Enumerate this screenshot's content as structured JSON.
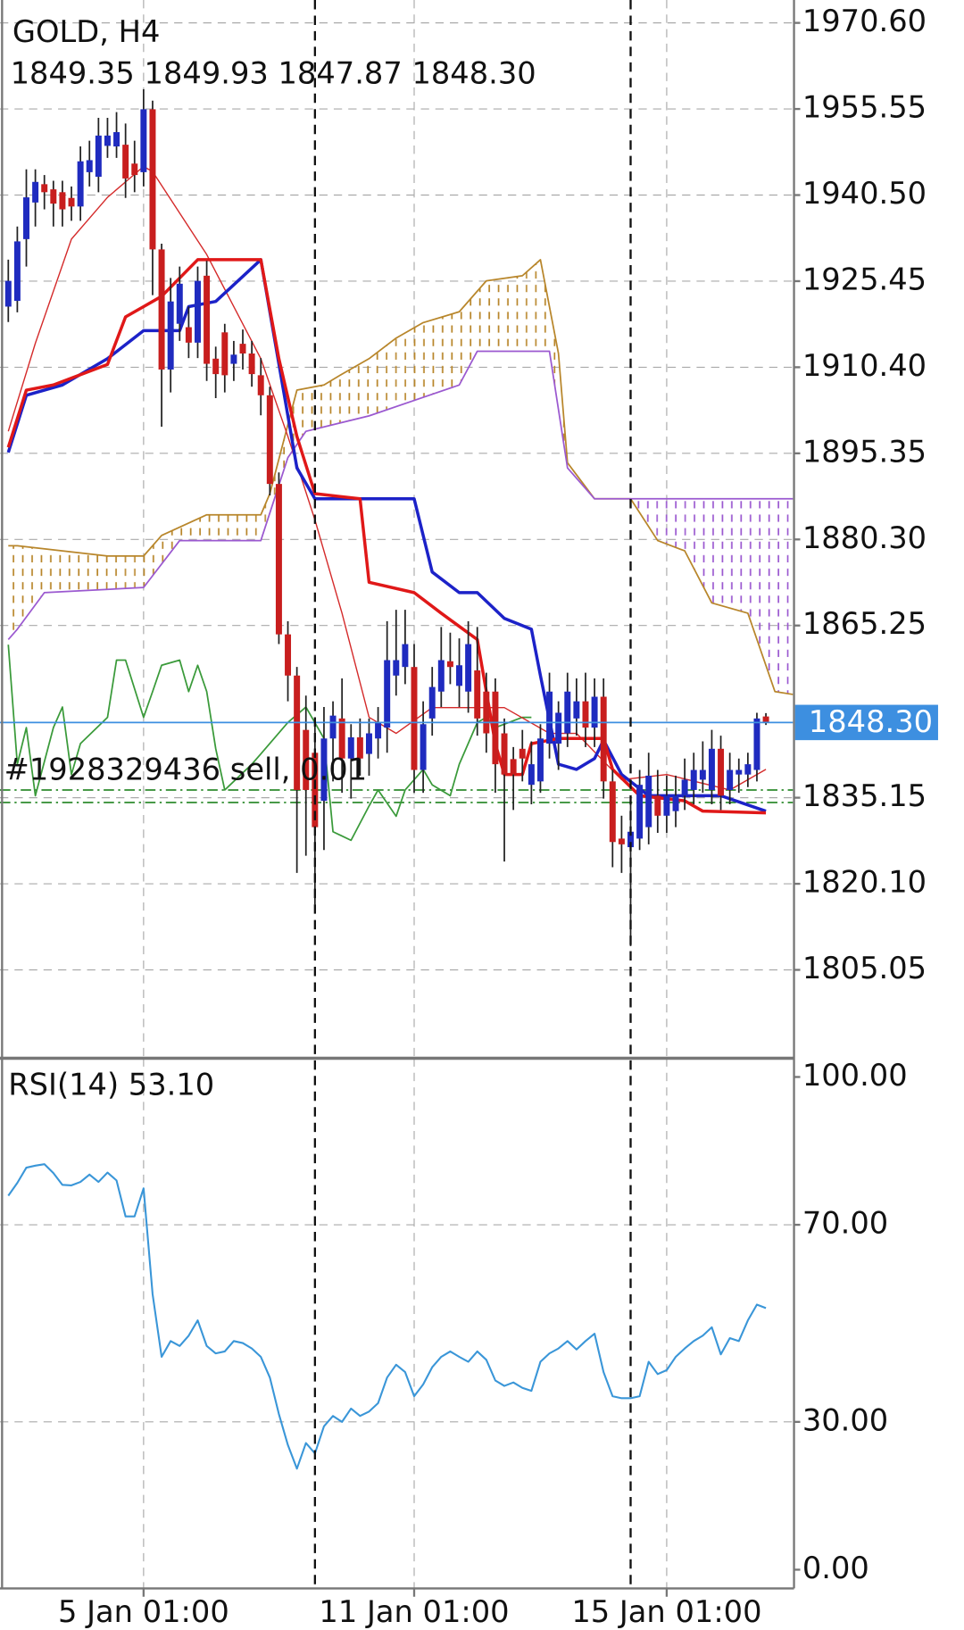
{
  "chart_data": [
    {
      "type": "candlestick",
      "title": "GOLD, H4",
      "subtitle": "1849.35 1849.93 1847.87 1848.30",
      "up_color": "#1f2bbf",
      "down_color": "#c81e1e",
      "wick_color": "#222222",
      "open": [
        1921.0,
        1922.0,
        1932.8,
        1939.2,
        1942.4,
        1941.5,
        1941.0,
        1940.0,
        1938.5,
        1944.5,
        1943.7,
        1949.1,
        1949.0,
        1949.3,
        1946.0,
        1944.5,
        1955.5,
        1931.0,
        1910.0,
        1918.0,
        1917.4,
        1914.7,
        1926.4,
        1911.9,
        1916.5,
        1911.0,
        1914.5,
        1912.8,
        1909.0,
        1905.5,
        1890.0,
        1863.7,
        1856.5,
        1847.0,
        1843.0,
        1834.6,
        1845.5,
        1849.0,
        1842.0,
        1845.7,
        1842.8,
        1845.5,
        1847.4,
        1856.5,
        1858.0,
        1858.0,
        1840.0,
        1849.0,
        1853.7,
        1859.0,
        1854.7,
        1853.7,
        1857.4,
        1853.7,
        1853.7,
        1846.4,
        1841.9,
        1843.7,
        1837.4,
        1838.0,
        1844.6,
        1844.6,
        1846.4,
        1849.0,
        1852.0,
        1847.4,
        1852.8,
        1838.0,
        1828.0,
        1826.5,
        1828.0,
        1830.0,
        1835.5,
        1832.0,
        1832.8,
        1835.5,
        1836.5,
        1838.3,
        1836.5,
        1843.7,
        1836.5,
        1839.2,
        1839.2,
        1840.0,
        1849.35
      ],
      "high": [
        1929.2,
        1935,
        1945,
        1945,
        1944,
        1943,
        1943,
        1942,
        1949,
        1950,
        1954,
        1954,
        1955,
        1953,
        1950,
        1959,
        1957,
        1932,
        1926,
        1928,
        1921,
        1928,
        1929,
        1914,
        1918,
        1915,
        1917,
        1915,
        1912,
        1907,
        1892,
        1866,
        1858,
        1853,
        1849,
        1851,
        1852,
        1856,
        1848,
        1849,
        1849,
        1851,
        1866,
        1868,
        1868,
        1862,
        1852,
        1858,
        1865,
        1864,
        1863,
        1866,
        1865,
        1857,
        1856,
        1849,
        1844,
        1847,
        1845,
        1848,
        1857,
        1852,
        1857,
        1856,
        1857,
        1856,
        1856,
        1840,
        1832,
        1834,
        1840,
        1843,
        1840,
        1839,
        1839,
        1842,
        1843,
        1845,
        1847,
        1846,
        1843,
        1842,
        1843,
        1850,
        1849.93
      ],
      "low": [
        1918.3,
        1920,
        1928,
        1935,
        1938,
        1935,
        1935,
        1936,
        1936,
        1942,
        1941,
        1947,
        1947,
        1940,
        1941,
        1942,
        1923,
        1900,
        1906,
        1915,
        1912,
        1912,
        1908,
        1905,
        1906,
        1908,
        1910,
        1907,
        1902,
        1888,
        1862,
        1852,
        1822,
        1825,
        1816.5,
        1826,
        1838,
        1836,
        1835,
        1839,
        1839,
        1842,
        1843,
        1853,
        1855,
        1836,
        1836,
        1846,
        1851,
        1855,
        1851,
        1850,
        1846,
        1843,
        1836,
        1824,
        1833,
        1838,
        1834,
        1836,
        1842,
        1840,
        1844,
        1846,
        1844,
        1844,
        1835,
        1823,
        1822,
        1809.2,
        1826,
        1827,
        1829,
        1829,
        1830,
        1833,
        1834,
        1836,
        1834,
        1833,
        1834,
        1836,
        1837,
        1838,
        1847.87
      ],
      "close": [
        1925.5,
        1932.4,
        1940.1,
        1942.8,
        1941.0,
        1939.0,
        1938.0,
        1938.5,
        1946.4,
        1946.6,
        1950.9,
        1950.9,
        1951.5,
        1943.4,
        1944.0,
        1955.5,
        1931.0,
        1910.0,
        1921.9,
        1925.0,
        1914.7,
        1925.5,
        1911.0,
        1909.2,
        1909.0,
        1912.6,
        1912.8,
        1909.2,
        1905.5,
        1890.0,
        1863.7,
        1856.5,
        1836.5,
        1836.5,
        1830.0,
        1845.5,
        1849.5,
        1842.0,
        1845.7,
        1842.0,
        1846.4,
        1848.3,
        1859.2,
        1859.2,
        1862.0,
        1840.0,
        1848.0,
        1854.5,
        1859.2,
        1858.0,
        1858.3,
        1862.0,
        1849.0,
        1846.4,
        1841.0,
        1839.2,
        1839.2,
        1842.0,
        1841.0,
        1845.5,
        1853.7,
        1850.0,
        1853.7,
        1852.0,
        1847.4,
        1852.8,
        1838.0,
        1827.4,
        1827.0,
        1829.2,
        1837.4,
        1839.0,
        1832.0,
        1835.5,
        1835.5,
        1838.3,
        1840.0,
        1840.0,
        1843.7,
        1835.5,
        1840.0,
        1840.0,
        1841.0,
        1849.0,
        1848.3
      ],
      "lines": [
        {
          "color": "#b8862b",
          "width": 1.5,
          "x": [
            0,
            1,
            11,
            15,
            17,
            22,
            28,
            29,
            32,
            35,
            37,
            40,
            43,
            46,
            50,
            53,
            57,
            59,
            61,
            62,
            65,
            69,
            72,
            75,
            78,
            82,
            85,
            87
          ],
          "values": [
            1879.2,
            1879.2,
            1877.4,
            1877.4,
            1881.0,
            1884.6,
            1884.6,
            1888.3,
            1906.4,
            1907.3,
            1909.2,
            1911.9,
            1915.5,
            1918.2,
            1920.1,
            1925.5,
            1926.4,
            1929.2,
            1912.8,
            1893.7,
            1887.4,
            1887.4,
            1880.1,
            1878.3,
            1869.2,
            1867.4,
            1853.7,
            1853.2
          ]
        },
        {
          "color": "#9b59d0",
          "width": 1.5,
          "x": [
            0,
            1,
            4,
            15,
            19,
            28,
            31,
            33,
            40,
            45,
            50,
            52,
            60,
            62,
            65,
            87
          ],
          "values": [
            1862.8,
            1864.6,
            1871.0,
            1871.9,
            1880.1,
            1880.1,
            1894.6,
            1899.2,
            1901.9,
            1904.6,
            1907.3,
            1913.2,
            1913.2,
            1892.8,
            1887.4,
            1887.4
          ]
        },
        {
          "color": "#3a9a3a",
          "width": 1.5,
          "x": [
            0,
            1,
            2,
            3,
            5,
            6,
            7,
            8,
            11,
            12,
            13,
            15,
            16,
            17,
            19,
            20,
            21,
            22,
            23,
            24,
            27,
            28,
            31,
            33,
            35,
            36,
            38,
            40,
            41,
            43,
            44,
            46,
            47,
            49,
            50,
            52,
            53,
            54,
            57,
            58
          ],
          "values": [
            1861.9,
            1841.0,
            1847.4,
            1835.5,
            1847.4,
            1851.0,
            1839.2,
            1844.6,
            1849.2,
            1859.2,
            1859.2,
            1849.2,
            1853.7,
            1858.3,
            1859.2,
            1853.7,
            1858.3,
            1853.7,
            1843.7,
            1836.5,
            1841.0,
            1842.8,
            1848.3,
            1851.0,
            1845.5,
            1829.2,
            1827.7,
            1833.7,
            1836.5,
            1831.9,
            1836.5,
            1840.1,
            1837.4,
            1835.5,
            1841.0,
            1848.3,
            1849.2,
            1847.4,
            1849.2,
            1849.2
          ]
        },
        {
          "color": "#d42a2a",
          "width": 1.2,
          "x": [
            0,
            3,
            7,
            11,
            15,
            16,
            22,
            28,
            31,
            34,
            37,
            40,
            43,
            47,
            52,
            55,
            60,
            63,
            68,
            73,
            80,
            84
          ],
          "values": [
            1899.2,
            1914.6,
            1932.8,
            1940.1,
            1945.5,
            1944.6,
            1930.1,
            1911.9,
            1898.3,
            1883.7,
            1867.4,
            1849.2,
            1846.4,
            1850.9,
            1850.9,
            1850.9,
            1846.4,
            1846.4,
            1838.3,
            1839.2,
            1836.5,
            1840.1
          ]
        },
        {
          "color": "#1c22c8",
          "width": 3,
          "x": [
            0,
            2,
            6,
            11,
            15,
            19,
            20,
            23,
            28,
            32,
            34,
            45,
            47,
            50,
            52,
            55,
            58,
            59,
            61,
            63,
            65,
            66,
            68,
            71,
            79,
            84
          ],
          "values": [
            1895.5,
            1905.5,
            1907.3,
            1911.9,
            1916.8,
            1916.8,
            1921.0,
            1921.9,
            1929.2,
            1892.8,
            1887.4,
            1887.4,
            1874.6,
            1871.0,
            1871.0,
            1866.5,
            1864.6,
            1856.5,
            1841.0,
            1840.1,
            1842.0,
            1845.2,
            1839.2,
            1835.5,
            1835.5,
            1832.8
          ]
        },
        {
          "color": "#e01818",
          "width": 3,
          "x": [
            0,
            2,
            5,
            11,
            13,
            15,
            17,
            21,
            28,
            30,
            32,
            34,
            39,
            40,
            45,
            48,
            52,
            54,
            55,
            57,
            58,
            61,
            66,
            67,
            70,
            75,
            77,
            84
          ],
          "values": [
            1896.4,
            1906.4,
            1907.3,
            1910.9,
            1919.2,
            1921.0,
            1922.8,
            1929.2,
            1929.2,
            1911.9,
            1898.3,
            1888.3,
            1887.4,
            1872.8,
            1871.0,
            1867.4,
            1862.8,
            1844.6,
            1839.2,
            1839.2,
            1844.6,
            1845.5,
            1845.5,
            1840.1,
            1835.5,
            1834.6,
            1832.8,
            1832.5
          ]
        }
      ],
      "cloud_colors": [
        "#b8862b",
        "#9b59d0"
      ],
      "last_price": {
        "value": 1848.3,
        "label": "1848.30"
      },
      "last_price_color": "#3d8fe0",
      "orders": {
        "label": "#1928329436 sell, 0.01",
        "values": [
          1836.5,
          1834.3
        ],
        "color": "#2e8b2e"
      },
      "separators": [
        34,
        69
      ],
      "xlim": [
        -0.92,
        87
      ],
      "xticks": [
        {
          "value": 15,
          "label": "5 Jan 01:00"
        },
        {
          "value": 45,
          "label": "11 Jan 01:00"
        },
        {
          "value": 73,
          "label": "15 Jan 01:00"
        }
      ],
      "ylim": [
        1789.6,
        1974.6
      ],
      "yticks": [
        {
          "value": 1970.6,
          "label": "1970.60"
        },
        {
          "value": 1955.55,
          "label": "1955.55"
        },
        {
          "value": 1940.5,
          "label": "1940.50"
        },
        {
          "value": 1925.45,
          "label": "1925.45"
        },
        {
          "value": 1910.4,
          "label": "1910.40"
        },
        {
          "value": 1895.35,
          "label": "1895.35"
        },
        {
          "value": 1880.3,
          "label": "1880.30"
        },
        {
          "value": 1865.25,
          "label": "1865.25"
        },
        {
          "value": 1835.15,
          "label": "1835.15"
        },
        {
          "value": 1820.1,
          "label": "1820.10"
        },
        {
          "value": 1805.05,
          "label": "1805.05"
        }
      ],
      "grid": true
    },
    {
      "type": "line",
      "title": "RSI(14) 53.10",
      "color": "#3a96d8",
      "values": [
        75.9,
        78.5,
        81.6,
        82.0,
        82.3,
        80.5,
        78.1,
        78.0,
        78.7,
        80.2,
        78.7,
        80.6,
        79.0,
        71.7,
        71.7,
        77.4,
        55.9,
        43.2,
        46.4,
        45.4,
        47.5,
        50.6,
        45.4,
        43.9,
        44.3,
        46.4,
        46.0,
        44.9,
        43.2,
        39.0,
        31.6,
        25.3,
        20.5,
        25.7,
        23.6,
        29.1,
        31.2,
        30.0,
        32.7,
        31.2,
        32.1,
        33.8,
        39.0,
        41.6,
        40.1,
        35.2,
        37.6,
        41.1,
        43.2,
        44.3,
        43.2,
        42.2,
        44.3,
        42.6,
        38.4,
        37.3,
        38.0,
        36.9,
        36.3,
        42.2,
        43.9,
        44.9,
        46.4,
        44.7,
        46.4,
        47.9,
        40.1,
        35.2,
        34.8,
        34.8,
        35.2,
        42.2,
        39.7,
        40.5,
        43.2,
        44.9,
        46.4,
        47.5,
        49.2,
        43.7,
        47.0,
        46.4,
        50.6,
        53.8,
        53.1
      ],
      "xlim": [
        -0.92,
        87
      ],
      "ylim": [
        -3.8,
        103.8
      ],
      "yticks": [
        {
          "value": 100,
          "label": "100.00"
        },
        {
          "value": 70,
          "label": "70.00"
        },
        {
          "value": 30,
          "label": "30.00"
        },
        {
          "value": 0,
          "label": "0.00"
        }
      ],
      "grid_values": [
        70,
        30
      ]
    }
  ]
}
